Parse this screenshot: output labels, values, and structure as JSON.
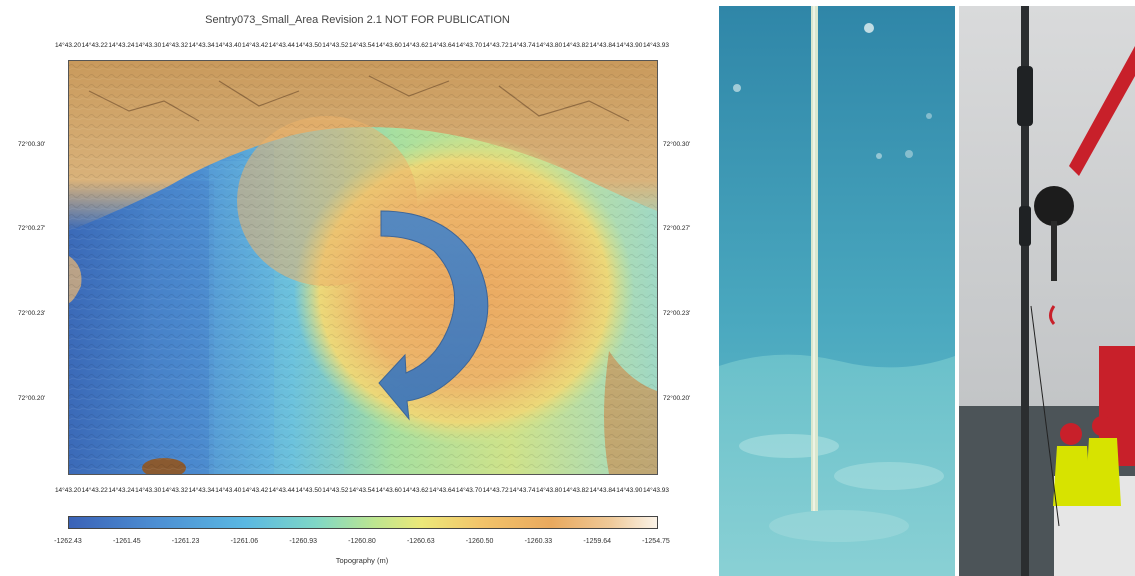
{
  "map": {
    "title": "Sentry073_Small_Area Revision 2.1  NOT FOR PUBLICATION",
    "lon_ticks_top": [
      "14°43.20",
      "14°43.22",
      "14°43.24",
      "14°43.30",
      "14°43.32",
      "14°43.34",
      "14°43.40",
      "14°43.42",
      "14°43.44",
      "14°43.50",
      "14°43.52",
      "14°43.54",
      "14°43.60",
      "14°43.62",
      "14°43.64",
      "14°43.70",
      "14°43.72",
      "14°43.74",
      "14°43.80",
      "14°43.82",
      "14°43.84",
      "14°43.90",
      "14°43.93"
    ],
    "lon_ticks_bottom": [
      "14°43.20",
      "14°43.22",
      "14°43.24",
      "14°43.30",
      "14°43.32",
      "14°43.34",
      "14°43.40",
      "14°43.42",
      "14°43.44",
      "14°43.50",
      "14°43.52",
      "14°43.54",
      "14°43.60",
      "14°43.62",
      "14°43.64",
      "14°43.70",
      "14°43.72",
      "14°43.74",
      "14°43.80",
      "14°43.82",
      "14°43.84",
      "14°43.90",
      "14°43.93"
    ],
    "lat_ticks": [
      "72°00.30'",
      "72°00.27'",
      "72°00.23'",
      "72°00.20'"
    ],
    "colorbar_ticks": [
      "-1262.43",
      "-1261.45",
      "-1261.23",
      "-1261.06",
      "-1260.93",
      "-1260.80",
      "-1260.63",
      "-1260.50",
      "-1260.33",
      "-1259.64",
      "-1254.75"
    ],
    "colorbar_label": "Topography (m)"
  },
  "colors": {
    "deep": "#3a66b8",
    "mid": "#7fd3c4",
    "shallow": "#e9ac62",
    "arrow": "#3f7fc4"
  },
  "photos": [
    {
      "name": "seafloor-core-photo"
    },
    {
      "name": "ship-deck-photo"
    }
  ]
}
